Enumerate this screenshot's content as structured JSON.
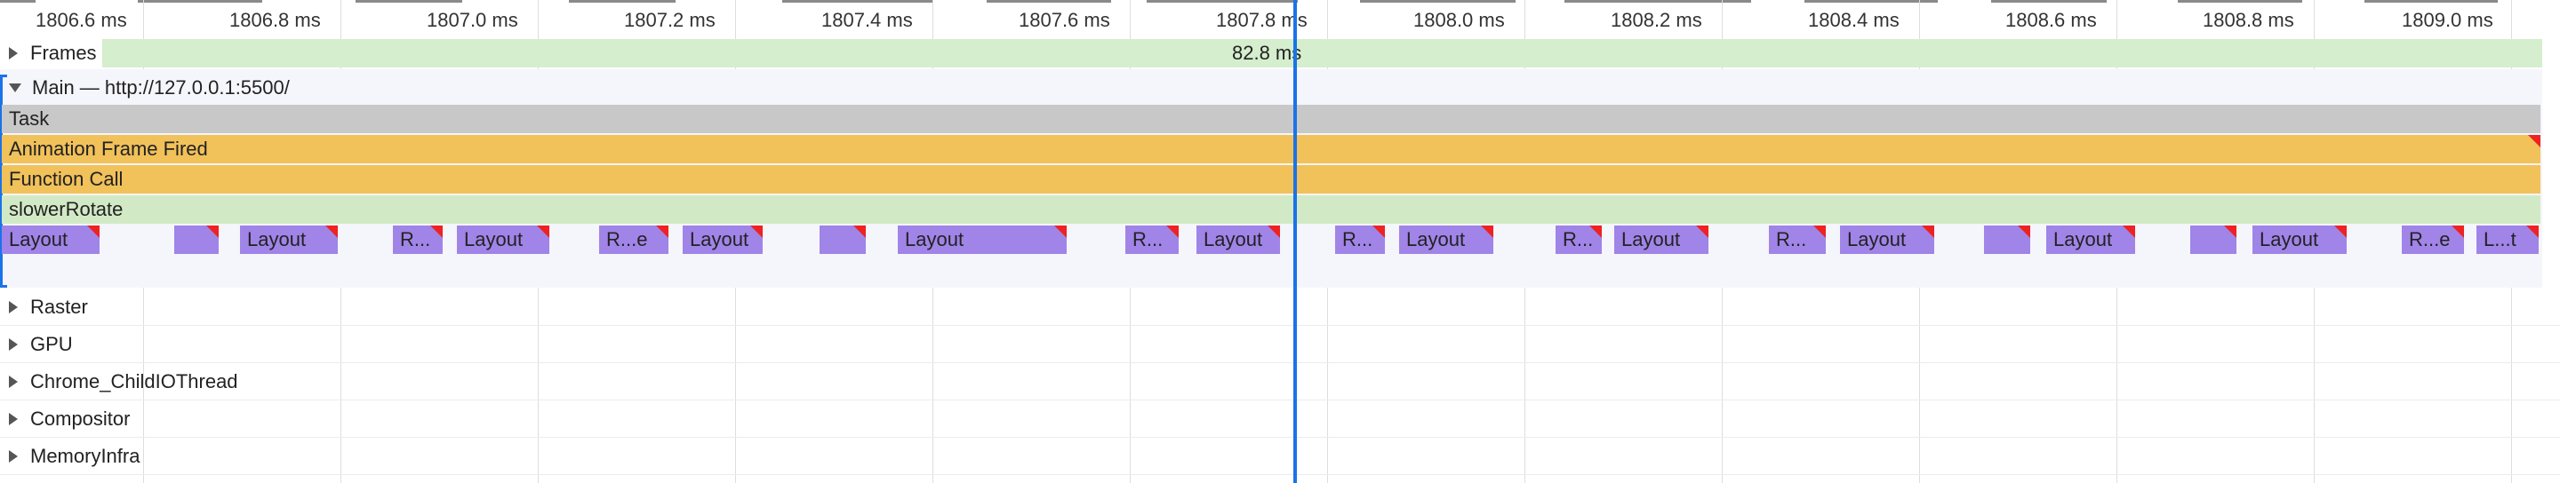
{
  "ruler": {
    "ticks": [
      "1806.6 ms",
      "1806.8 ms",
      "1807.0 ms",
      "1807.2 ms",
      "1807.4 ms",
      "1807.6 ms",
      "1807.8 ms",
      "1808.0 ms",
      "1808.2 ms",
      "1808.4 ms",
      "1808.6 ms",
      "1808.8 ms",
      "1809.0 ms"
    ]
  },
  "frames": {
    "label": "Frames",
    "duration": "82.8 ms"
  },
  "main": {
    "title": "Main — http://127.0.0.1:5500/",
    "task": "Task",
    "animation_frame": "Animation Frame Fired",
    "function_call": "Function Call",
    "slower_rotate": "slowerRotate",
    "layouts": [
      "Layout",
      "",
      "Layout",
      "R...",
      "Layout",
      "R...e",
      "Layout",
      "",
      "Layout",
      "R...",
      "Layout",
      "R...",
      "Layout",
      "R...",
      "Layout",
      "R...",
      "Layout",
      "",
      "Layout",
      "",
      "Layout",
      "R...e",
      "L...t"
    ]
  },
  "tracks": [
    "Raster",
    "GPU",
    "Chrome_ChildIOThread",
    "Compositor",
    "MemoryInfra"
  ],
  "colors": {
    "playhead": "#1a73e8",
    "layout": "#a084e8",
    "scripting": "#f1c15a",
    "frames": "#d5eece",
    "task": "#c8c8c8"
  }
}
